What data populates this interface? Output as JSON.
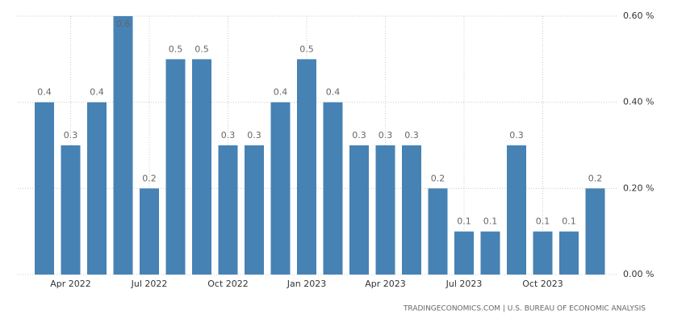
{
  "chart_data": {
    "type": "bar",
    "categories": [
      null,
      "Apr 2022",
      null,
      null,
      "Jul 2022",
      null,
      null,
      "Oct 2022",
      null,
      null,
      "Jan 2023",
      null,
      null,
      "Apr 2023",
      null,
      null,
      "Jul 2023",
      null,
      null,
      "Oct 2023",
      null,
      null
    ],
    "values": [
      0.4,
      0.3,
      0.4,
      0.6,
      0.2,
      0.5,
      0.5,
      0.3,
      0.3,
      0.4,
      0.5,
      0.4,
      0.3,
      0.3,
      0.3,
      0.2,
      0.1,
      0.1,
      0.3,
      0.1,
      0.1,
      0.2
    ],
    "color": "#4682b4",
    "ylim": [
      0,
      0.6
    ],
    "yticks": [
      {
        "value": 0,
        "label": "0.00 %"
      },
      {
        "value": 0.2,
        "label": "0.20 %"
      },
      {
        "value": 0.4,
        "label": "0.40 %"
      },
      {
        "value": 0.6,
        "label": "0.60 %"
      }
    ],
    "grid": true,
    "source": "TRADINGECONOMICS.COM | U.S. BUREAU OF ECONOMIC ANALYSIS"
  }
}
